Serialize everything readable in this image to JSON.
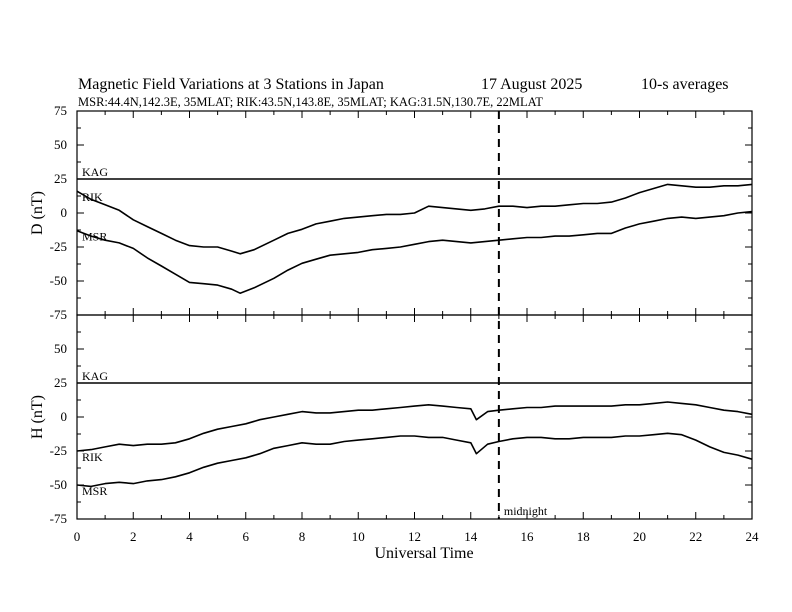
{
  "header": {
    "title": "Magnetic Field Variations at 3 Stations in Japan",
    "date": "17  August  2025",
    "averaging": "10-s averages",
    "stations_line": "MSR:44.4N,142.3E, 35MLAT;  RIK:43.5N,143.8E, 35MLAT;  KAG:31.5N,130.7E, 22MLAT"
  },
  "chart_data": {
    "type": "line",
    "xlabel": "Universal Time",
    "xlim": [
      0,
      24
    ],
    "x_ticks": [
      "0",
      "2",
      "4",
      "6",
      "8",
      "10",
      "12",
      "14",
      "16",
      "18",
      "20",
      "22",
      "24"
    ],
    "midnight_marker": {
      "x": 15,
      "label": "midnight"
    },
    "panels": [
      {
        "ylabel": "D (nT)",
        "ylim": [
          -75,
          75
        ],
        "y_ticks": [
          "75",
          "50",
          "25",
          "0",
          "-25",
          "-50",
          "-75"
        ],
        "series": [
          {
            "name": "KAG",
            "x": [
              0,
              24
            ],
            "values": [
              25,
              25
            ]
          },
          {
            "name": "RIK",
            "x": [
              0,
              0.5,
              1,
              1.5,
              2,
              2.5,
              3,
              3.5,
              4,
              4.5,
              5,
              5.5,
              5.8,
              6.3,
              7,
              7.5,
              8,
              8.5,
              9,
              9.5,
              10,
              10.5,
              11,
              11.5,
              12,
              12.5,
              13,
              13.5,
              14,
              14.5,
              15,
              15.5,
              16,
              16.5,
              17,
              17.5,
              18,
              18.5,
              19,
              19.5,
              20,
              20.5,
              21,
              21.5,
              22,
              22.5,
              23,
              23.5,
              24
            ],
            "values": [
              16,
              10,
              6,
              2,
              -5,
              -10,
              -15,
              -20,
              -24,
              -25,
              -25,
              -28,
              -30,
              -27,
              -20,
              -15,
              -12,
              -8,
              -6,
              -4,
              -3,
              -2,
              -1,
              -1,
              0,
              5,
              4,
              3,
              2,
              3,
              5,
              5,
              4,
              5,
              5,
              6,
              7,
              7,
              8,
              11,
              15,
              18,
              21,
              20,
              19,
              19,
              20,
              20,
              21
            ]
          },
          {
            "name": "MSR",
            "x": [
              0,
              0.5,
              1,
              1.5,
              2,
              2.5,
              3,
              3.5,
              4,
              4.5,
              5,
              5.5,
              5.8,
              6.3,
              7,
              7.5,
              8,
              8.5,
              9,
              9.5,
              10,
              10.5,
              11,
              11.5,
              12,
              12.5,
              13,
              13.5,
              14,
              14.5,
              15,
              15.5,
              16,
              16.5,
              17,
              17.5,
              18,
              18.5,
              19,
              19.5,
              20,
              20.5,
              21,
              21.5,
              22,
              22.5,
              23,
              23.5,
              24
            ],
            "values": [
              -13,
              -17,
              -20,
              -22,
              -26,
              -33,
              -39,
              -45,
              -51,
              -52,
              -53,
              -56,
              -59,
              -55,
              -48,
              -42,
              -37,
              -34,
              -31,
              -30,
              -29,
              -27,
              -26,
              -25,
              -23,
              -21,
              -20,
              -21,
              -22,
              -21,
              -20,
              -19,
              -18,
              -18,
              -17,
              -17,
              -16,
              -15,
              -15,
              -11,
              -8,
              -6,
              -4,
              -3,
              -4,
              -3,
              -2,
              0,
              1
            ]
          }
        ],
        "series_labels": [
          "KAG",
          "RIK",
          "MSR"
        ]
      },
      {
        "ylabel": "H (nT)",
        "ylim": [
          -75,
          75
        ],
        "y_ticks": [
          "75",
          "50",
          "25",
          "0",
          "-25",
          "-50",
          "-75"
        ],
        "series": [
          {
            "name": "KAG",
            "x": [
              0,
              24
            ],
            "values": [
              25,
              25
            ]
          },
          {
            "name": "RIK",
            "x": [
              0,
              0.5,
              1,
              1.5,
              2,
              2.5,
              3,
              3.5,
              4,
              4.5,
              5,
              5.5,
              6,
              6.5,
              7,
              7.5,
              8,
              8.5,
              9,
              9.5,
              10,
              10.5,
              11,
              11.5,
              12,
              12.5,
              13,
              13.5,
              14,
              14.2,
              14.6,
              15,
              15.5,
              16,
              16.5,
              17,
              17.5,
              18,
              18.5,
              19,
              19.5,
              20,
              20.5,
              21,
              21.5,
              22,
              22.5,
              23,
              23.5,
              24
            ],
            "values": [
              -25,
              -24,
              -22,
              -20,
              -21,
              -20,
              -20,
              -19,
              -16,
              -12,
              -9,
              -7,
              -5,
              -2,
              0,
              2,
              4,
              3,
              3,
              4,
              5,
              5,
              6,
              7,
              8,
              9,
              8,
              7,
              6,
              -2,
              4,
              5,
              6,
              7,
              7,
              8,
              8,
              8,
              8,
              8,
              9,
              9,
              10,
              11,
              10,
              9,
              7,
              5,
              4,
              2
            ]
          },
          {
            "name": "MSR",
            "x": [
              0,
              0.5,
              1,
              1.5,
              2,
              2.5,
              3,
              3.5,
              4,
              4.5,
              5,
              5.5,
              6,
              6.5,
              7,
              7.5,
              8,
              8.5,
              9,
              9.5,
              10,
              10.5,
              11,
              11.5,
              12,
              12.5,
              13,
              13.5,
              14,
              14.2,
              14.6,
              15,
              15.5,
              16,
              16.5,
              17,
              17.5,
              18,
              18.5,
              19,
              19.5,
              20,
              20.5,
              21,
              21.5,
              22,
              22.5,
              23,
              23.5,
              24
            ],
            "values": [
              -50,
              -51,
              -49,
              -48,
              -49,
              -47,
              -46,
              -44,
              -41,
              -37,
              -34,
              -32,
              -30,
              -27,
              -23,
              -21,
              -19,
              -20,
              -20,
              -18,
              -17,
              -16,
              -15,
              -14,
              -14,
              -15,
              -15,
              -17,
              -19,
              -27,
              -20,
              -18,
              -16,
              -15,
              -15,
              -16,
              -16,
              -15,
              -15,
              -15,
              -14,
              -14,
              -13,
              -12,
              -13,
              -17,
              -22,
              -26,
              -28,
              -31
            ]
          }
        ],
        "series_labels": [
          "KAG",
          "RIK",
          "MSR"
        ]
      }
    ]
  }
}
